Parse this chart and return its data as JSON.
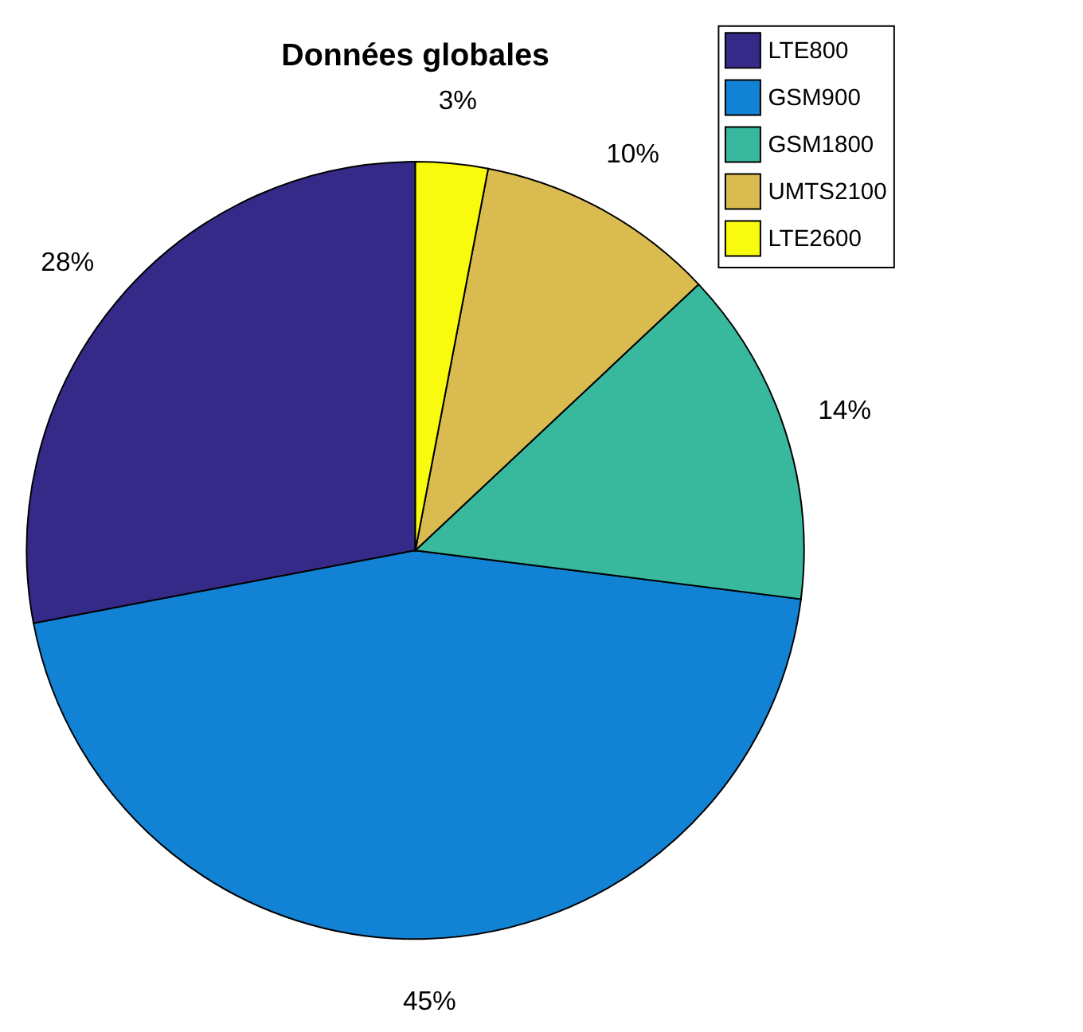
{
  "chart_data": {
    "type": "pie",
    "title": "Données globales",
    "categories": [
      "LTE800",
      "GSM900",
      "GSM1800",
      "UMTS2100",
      "LTE2600"
    ],
    "values": [
      28,
      45,
      14,
      10,
      3
    ],
    "colors": [
      "#352a87",
      "#1283d4",
      "#38b99e",
      "#d9bb50",
      "#f9fb0e"
    ],
    "value_labels": [
      "28%",
      "45%",
      "14%",
      "10%",
      "3%"
    ],
    "legend": "top right"
  }
}
